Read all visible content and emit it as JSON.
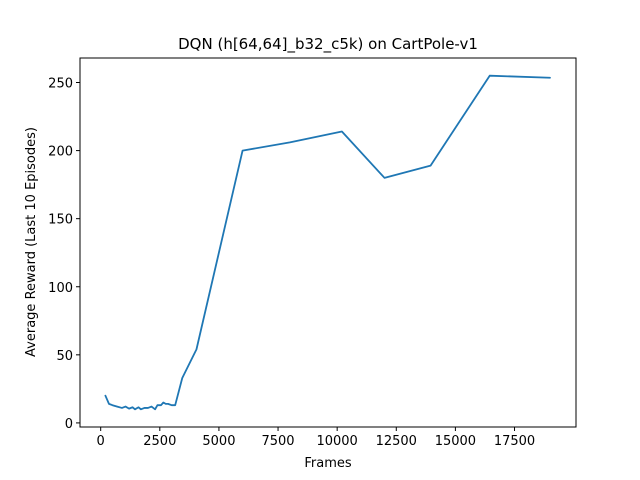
{
  "chart_data": {
    "type": "line",
    "title": "DQN (h[64,64]_b32_c5k) on CartPole-v1",
    "xlabel": "Frames",
    "ylabel": "Average Reward (Last 10 Episodes)",
    "xlim": [
      -875,
      20100
    ],
    "ylim": [
      -3,
      268
    ],
    "xticks": [
      0,
      2500,
      5000,
      7500,
      10000,
      12500,
      15000,
      17500
    ],
    "xtick_labels": [
      "0",
      "2500",
      "5000",
      "7500",
      "10000",
      "12500",
      "15000",
      "17500"
    ],
    "yticks": [
      0,
      50,
      100,
      150,
      200,
      250
    ],
    "ytick_labels": [
      "0",
      "50",
      "100",
      "150",
      "200",
      "250"
    ],
    "grid": false,
    "series": [
      {
        "color": "#1f77b4",
        "x": [
          200,
          350,
          500,
          700,
          900,
          1050,
          1200,
          1350,
          1450,
          1600,
          1700,
          1850,
          2000,
          2150,
          2300,
          2400,
          2550,
          2650,
          2750,
          2850,
          3000,
          3150,
          3450,
          4050,
          6000,
          8000,
          10200,
          12000,
          13950,
          16450,
          19000
        ],
        "y": [
          20,
          14,
          13,
          12,
          11,
          12,
          10.5,
          11.5,
          10,
          11.5,
          10,
          11,
          11,
          12,
          10,
          13,
          13,
          15,
          14,
          14,
          13,
          13,
          33,
          54,
          200,
          206,
          214,
          180,
          189,
          255,
          253.5
        ]
      }
    ]
  }
}
